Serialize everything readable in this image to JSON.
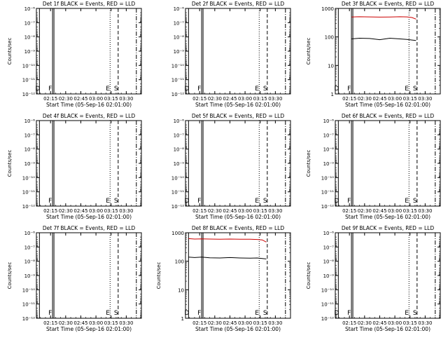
{
  "colors": {
    "events": "#000000",
    "lld": "#cc0000",
    "axis": "#000000",
    "background": "#ffffff"
  },
  "chart_data": [
    {
      "type": "line",
      "title": "Det 1f BLACK = Events, RED = LLD",
      "xlabel": "Start Time (05-Sep-16 02:01:00)",
      "ylabel": "Counts/sec",
      "xticks": [
        "02:15",
        "02:30",
        "02:45",
        "03:00",
        "03:15",
        "03:30"
      ],
      "yscale": "log",
      "ylim": [
        1e-06,
        1e-12
      ],
      "yticks": [
        "10⁻⁶",
        "10⁻⁷",
        "10⁻⁸",
        "10⁻⁹",
        "10⁻¹⁰",
        "10⁻¹¹",
        "10⁻¹²"
      ],
      "markers": [
        {
          "time": "02:04",
          "label": "D",
          "style": "solid"
        },
        {
          "time": "02:17",
          "label": "F",
          "style": "solid"
        },
        {
          "time": "03:14",
          "label": "E",
          "style": "dotted"
        },
        {
          "time": "03:22",
          "label": "S",
          "style": "dashed"
        },
        {
          "time": "03:40",
          "label": "",
          "style": "dashdot"
        }
      ],
      "series": []
    },
    {
      "type": "line",
      "title": "Det 2f BLACK = Events, RED = LLD",
      "xlabel": "Start Time (05-Sep-16 02:01:00)",
      "ylabel": "",
      "xticks": [
        "02:15",
        "02:30",
        "02:45",
        "03:00",
        "03:15",
        "03:30"
      ],
      "yscale": "log",
      "ylim": [
        1e-06,
        1e-12
      ],
      "yticks": [
        "10⁻⁶",
        "10⁻⁷",
        "10⁻⁸",
        "10⁻⁹",
        "10⁻¹⁰",
        "10⁻¹¹",
        "10⁻¹²"
      ],
      "markers": [
        {
          "time": "02:04",
          "label": "D",
          "style": "solid"
        },
        {
          "time": "02:17",
          "label": "F",
          "style": "solid"
        },
        {
          "time": "03:14",
          "label": "E",
          "style": "dotted"
        },
        {
          "time": "03:22",
          "label": "S",
          "style": "dashed"
        },
        {
          "time": "03:40",
          "label": "",
          "style": "dashdot"
        }
      ],
      "series": []
    },
    {
      "type": "line",
      "title": "Det 3f BLACK = Events, RED = LLD",
      "xlabel": "Start Time (05-Sep-16 02:01:00)",
      "ylabel": "Counts/sec",
      "xticks": [
        "02:15",
        "02:30",
        "02:45",
        "03:00",
        "03:15",
        "03:30"
      ],
      "yscale": "log",
      "ylim": [
        1,
        1000
      ],
      "yticks": [
        "1000",
        "100",
        "10",
        "1"
      ],
      "markers": [
        {
          "time": "02:04",
          "label": "D",
          "style": "solid"
        },
        {
          "time": "02:17",
          "label": "F",
          "style": "solid"
        },
        {
          "time": "03:14",
          "label": "E",
          "style": "dotted"
        },
        {
          "time": "03:22",
          "label": "S",
          "style": "dashed"
        },
        {
          "time": "03:40",
          "label": "",
          "style": "dashdot"
        }
      ],
      "series": [
        {
          "color": "#cc0000",
          "x": [
            "02:17",
            "02:25",
            "02:35",
            "02:45",
            "02:55",
            "03:05",
            "03:12",
            "03:17",
            "03:21"
          ],
          "y": [
            500,
            510,
            505,
            495,
            500,
            510,
            505,
            480,
            420
          ]
        },
        {
          "color": "#000000",
          "x": [
            "02:17",
            "02:25",
            "02:35",
            "02:45",
            "02:55",
            "03:05",
            "03:12",
            "03:17",
            "03:21"
          ],
          "y": [
            85,
            90,
            88,
            80,
            90,
            85,
            82,
            78,
            75
          ]
        }
      ]
    },
    {
      "type": "line",
      "title": "Det 4f BLACK = Events, RED = LLD",
      "xlabel": "Start Time (05-Sep-16 02:01:00)",
      "ylabel": "Counts/sec",
      "xticks": [
        "02:15",
        "02:30",
        "02:45",
        "03:00",
        "03:15",
        "03:30"
      ],
      "yscale": "log",
      "ylim": [
        1e-06,
        1e-12
      ],
      "yticks": [
        "10⁻⁶",
        "10⁻⁷",
        "10⁻⁸",
        "10⁻⁹",
        "10⁻¹⁰",
        "10⁻¹¹",
        "10⁻¹²"
      ],
      "markers": [
        {
          "time": "02:04",
          "label": "",
          "style": "solid"
        },
        {
          "time": "02:17",
          "label": "F",
          "style": "solid"
        },
        {
          "time": "03:14",
          "label": "E",
          "style": "dotted"
        },
        {
          "time": "03:22",
          "label": "S",
          "style": "dashed"
        },
        {
          "time": "03:40",
          "label": "",
          "style": "dashdot"
        }
      ],
      "series": []
    },
    {
      "type": "line",
      "title": "Det 5f BLACK = Events, RED = LLD",
      "xlabel": "Start Time (05-Sep-16 02:01:00)",
      "ylabel": "",
      "xticks": [
        "02:15",
        "02:30",
        "02:45",
        "03:00",
        "03:15",
        "03:30"
      ],
      "yscale": "log",
      "ylim": [
        1e-06,
        1e-12
      ],
      "yticks": [
        "10⁻⁶",
        "10⁻⁷",
        "10⁻⁸",
        "10⁻⁹",
        "10⁻¹⁰",
        "10⁻¹¹",
        "10⁻¹²"
      ],
      "markers": [
        {
          "time": "02:04",
          "label": "D",
          "style": "solid"
        },
        {
          "time": "02:17",
          "label": "F",
          "style": "solid"
        },
        {
          "time": "03:14",
          "label": "E",
          "style": "dotted"
        },
        {
          "time": "03:22",
          "label": "S",
          "style": "dashed"
        },
        {
          "time": "03:40",
          "label": "",
          "style": "dashdot"
        }
      ],
      "series": []
    },
    {
      "type": "line",
      "title": "Det 6f BLACK = Events, RED = LLD",
      "xlabel": "Start Time (05-Sep-16 02:01:00)",
      "ylabel": "Counts/sec",
      "xticks": [
        "02:15",
        "02:30",
        "02:45",
        "03:00",
        "03:15",
        "03:30"
      ],
      "yscale": "log",
      "ylim": [
        1e-06,
        1e-12
      ],
      "yticks": [
        "10⁻⁶",
        "10⁻⁷",
        "10⁻⁸",
        "10⁻⁹",
        "10⁻¹⁰",
        "10⁻¹¹",
        "10⁻¹²"
      ],
      "markers": [
        {
          "time": "02:04",
          "label": "D",
          "style": "solid"
        },
        {
          "time": "02:17",
          "label": "F",
          "style": "solid"
        },
        {
          "time": "03:14",
          "label": "E",
          "style": "dotted"
        },
        {
          "time": "03:22",
          "label": "S",
          "style": "dashed"
        },
        {
          "time": "03:40",
          "label": "",
          "style": "dashdot"
        }
      ],
      "series": []
    },
    {
      "type": "line",
      "title": "Det 7f BLACK = Events, RED = LLD",
      "xlabel": "Start Time (05-Sep-16 02:01:00)",
      "ylabel": "Counts/sec",
      "xticks": [
        "02:15",
        "02:30",
        "02:45",
        "03:00",
        "03:15",
        "03:30"
      ],
      "yscale": "log",
      "ylim": [
        1e-06,
        1e-12
      ],
      "yticks": [
        "10⁻⁶",
        "10⁻⁷",
        "10⁻⁸",
        "10⁻⁹",
        "10⁻¹⁰",
        "10⁻¹¹",
        "10⁻¹²"
      ],
      "markers": [
        {
          "time": "02:04",
          "label": "",
          "style": "solid"
        },
        {
          "time": "02:17",
          "label": "F",
          "style": "solid"
        },
        {
          "time": "03:14",
          "label": "E",
          "style": "dotted"
        },
        {
          "time": "03:22",
          "label": "S",
          "style": "dashed"
        },
        {
          "time": "03:40",
          "label": "",
          "style": "dashdot"
        }
      ],
      "series": []
    },
    {
      "type": "line",
      "title": "Det 8f BLACK = Events, RED = LLD",
      "xlabel": "Start Time (05-Sep-16 02:01:00)",
      "ylabel": "Counts/sec",
      "xticks": [
        "02:15",
        "02:30",
        "02:45",
        "03:00",
        "03:15",
        "03:30"
      ],
      "yscale": "log",
      "ylim": [
        1,
        1000
      ],
      "yticks": [
        "1000",
        "100",
        "10",
        "1"
      ],
      "markers": [
        {
          "time": "02:04",
          "label": "D",
          "style": "solid"
        },
        {
          "time": "02:17",
          "label": "F",
          "style": "solid"
        },
        {
          "time": "03:14",
          "label": "E",
          "style": "dotted"
        },
        {
          "time": "03:22",
          "label": "S",
          "style": "dashed"
        },
        {
          "time": "03:40",
          "label": "",
          "style": "dashdot"
        }
      ],
      "series": [
        {
          "color": "#cc0000",
          "x": [
            "02:04",
            "02:10",
            "02:17",
            "02:25",
            "02:35",
            "02:45",
            "02:55",
            "03:05",
            "03:12",
            "03:17",
            "03:21"
          ],
          "y": [
            620,
            600,
            610,
            600,
            590,
            600,
            595,
            590,
            580,
            560,
            470
          ]
        },
        {
          "color": "#000000",
          "x": [
            "02:04",
            "02:10",
            "02:17",
            "02:25",
            "02:35",
            "02:45",
            "02:55",
            "03:05",
            "03:12",
            "03:17",
            "03:21"
          ],
          "y": [
            140,
            135,
            140,
            132,
            130,
            135,
            130,
            128,
            130,
            125,
            120
          ]
        }
      ]
    },
    {
      "type": "line",
      "title": "Det 9f BLACK = Events, RED = LLD",
      "xlabel": "Start Time (05-Sep-16 02:01:00)",
      "ylabel": "Counts/sec",
      "xticks": [
        "02:15",
        "02:30",
        "02:45",
        "03:00",
        "03:15",
        "03:30"
      ],
      "yscale": "log",
      "ylim": [
        1e-06,
        1e-12
      ],
      "yticks": [
        "10⁻⁶",
        "10⁻⁷",
        "10⁻⁸",
        "10⁻⁹",
        "10⁻¹⁰",
        "10⁻¹¹",
        "10⁻¹²"
      ],
      "markers": [
        {
          "time": "02:04",
          "label": "D",
          "style": "solid"
        },
        {
          "time": "02:17",
          "label": "F",
          "style": "solid"
        },
        {
          "time": "03:14",
          "label": "E",
          "style": "dotted"
        },
        {
          "time": "03:22",
          "label": "S",
          "style": "dashed"
        },
        {
          "time": "03:40",
          "label": "",
          "style": "dashdot"
        }
      ],
      "series": []
    }
  ]
}
